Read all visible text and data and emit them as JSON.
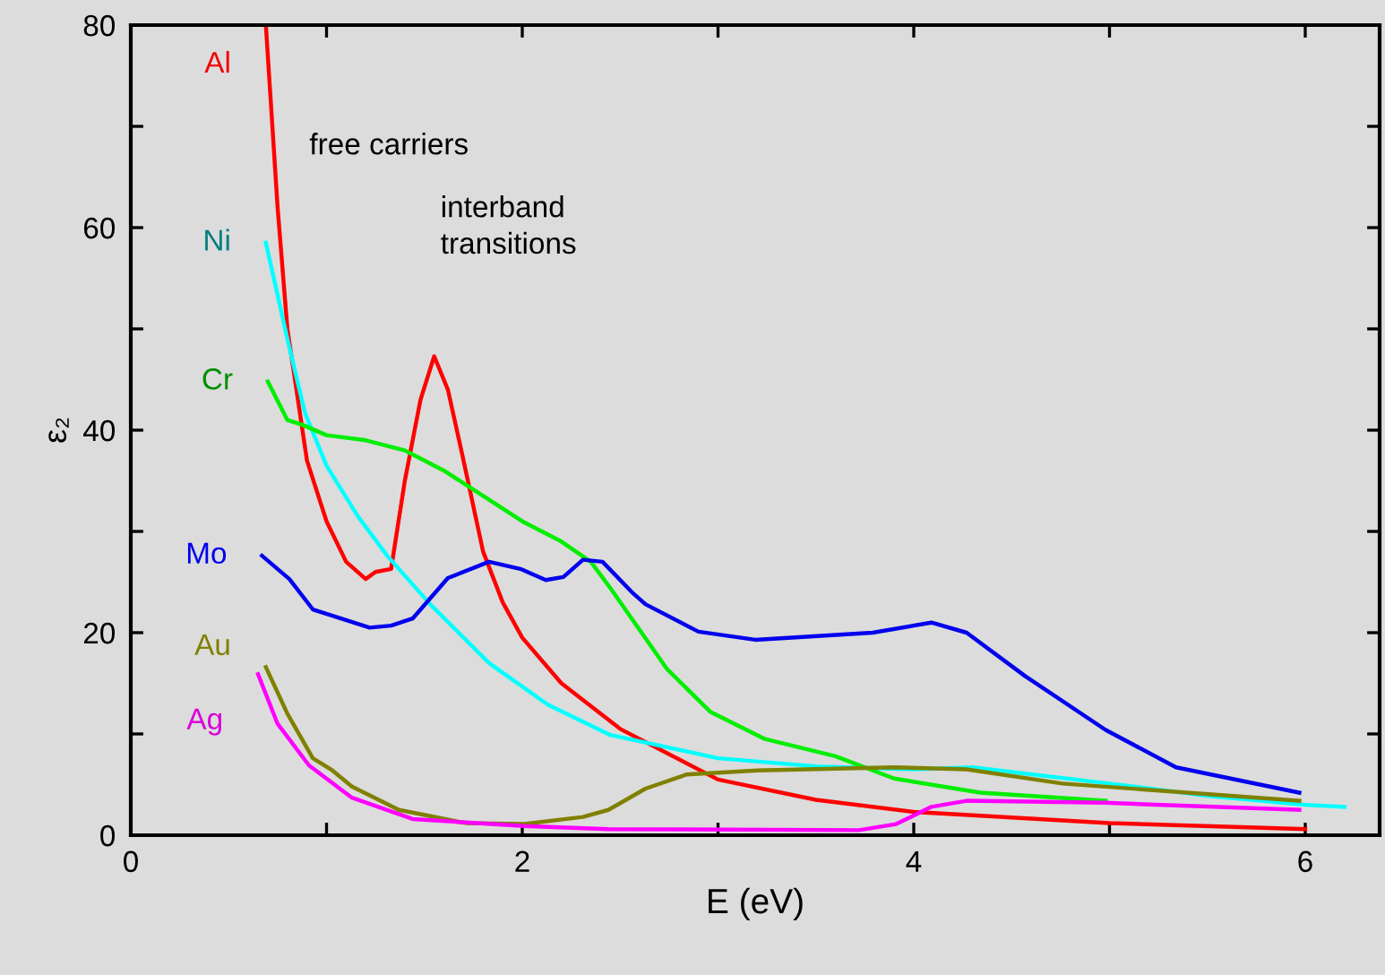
{
  "chart_data": {
    "type": "line",
    "xlabel": "E (eV)",
    "ylabel": "ε₂",
    "xlim": [
      0,
      6.38
    ],
    "ylim": [
      0,
      80
    ],
    "xticks": [
      0,
      {
        "value": 1,
        "label": null
      },
      2,
      {
        "value": 3,
        "label": null
      },
      4,
      {
        "value": 5,
        "label": null
      },
      6
    ],
    "yticks": [
      0,
      {
        "value": 10,
        "label": null
      },
      20,
      {
        "value": 30,
        "label": null
      },
      40,
      {
        "value": 50,
        "label": null
      },
      60,
      {
        "value": 70,
        "label": null
      },
      80
    ],
    "grid": false,
    "legend": false,
    "marker": "none",
    "line_style": "solid",
    "annotations": [
      "free carriers",
      "interband\ntransitions"
    ],
    "series": [
      {
        "name": "Al",
        "color": "#ff0000",
        "x": [
          0.69,
          0.75,
          0.8,
          0.9,
          1.0,
          1.1,
          1.2,
          1.25,
          1.33,
          1.4,
          1.48,
          1.55,
          1.62,
          1.7,
          1.8,
          1.9,
          2.0,
          2.2,
          2.5,
          3.0,
          3.5,
          4.0,
          5.0,
          6.0
        ],
        "values": [
          80,
          62,
          50,
          37,
          31,
          27,
          25.3,
          26,
          26.3,
          35,
          43,
          47.3,
          44,
          37,
          28,
          23,
          19.5,
          15,
          10.5,
          5.5,
          3.5,
          2.3,
          1.2,
          0.6
        ]
      },
      {
        "name": "Ni",
        "color": "#00ffff",
        "x": [
          0.69,
          0.8,
          0.89,
          1.0,
          1.16,
          1.31,
          1.53,
          1.83,
          2.13,
          2.45,
          3.0,
          3.5,
          4.0,
          4.3,
          5.0,
          5.5,
          6.0,
          6.2
        ],
        "values": [
          58.5,
          49,
          41.7,
          36.5,
          31.5,
          27.6,
          22.8,
          17,
          12.9,
          9.9,
          7.6,
          6.8,
          6.5,
          6.7,
          5.1,
          3.9,
          3.0,
          2.8
        ]
      },
      {
        "name": "Cr",
        "color": "#00ee00",
        "x": [
          0.7,
          0.8,
          0.88,
          1.0,
          1.2,
          1.4,
          1.6,
          2.0,
          2.2,
          2.35,
          2.45,
          2.74,
          2.96,
          3.24,
          3.6,
          3.9,
          4.34,
          4.98
        ],
        "values": [
          44.8,
          41,
          40.5,
          39.5,
          39,
          38,
          36,
          31,
          29,
          27,
          24.4,
          16.4,
          12.2,
          9.5,
          7.8,
          5.6,
          4.2,
          3.4
        ]
      },
      {
        "name": "Mo",
        "color": "#0000ee",
        "x": [
          0.67,
          0.81,
          0.93,
          1.22,
          1.33,
          1.44,
          1.62,
          1.83,
          1.99,
          2.12,
          2.21,
          2.31,
          2.41,
          2.56,
          2.63,
          2.9,
          3.19,
          3.79,
          4.09,
          4.27,
          4.57,
          4.98,
          5.34,
          5.97
        ],
        "values": [
          27.6,
          25.3,
          22.3,
          20.5,
          20.7,
          21.4,
          25.4,
          27,
          26.3,
          25.2,
          25.5,
          27.2,
          27,
          24,
          22.8,
          20.1,
          19.3,
          20,
          21,
          20,
          15.7,
          10.4,
          6.7,
          4.2
        ]
      },
      {
        "name": "Au",
        "color": "#808000",
        "x": [
          0.69,
          0.8,
          0.93,
          1.03,
          1.13,
          1.37,
          1.71,
          2.01,
          2.31,
          2.44,
          2.63,
          2.84,
          3.2,
          3.9,
          4.27,
          4.76,
          5.97
        ],
        "values": [
          16.6,
          12,
          7.6,
          6.4,
          4.8,
          2.5,
          1.2,
          1.1,
          1.8,
          2.5,
          4.6,
          6,
          6.4,
          6.7,
          6.5,
          5.1,
          3.4
        ]
      },
      {
        "name": "Ag",
        "color": "#ff00ff",
        "x": [
          0.65,
          0.75,
          0.91,
          1.13,
          1.44,
          2.01,
          2.44,
          3.72,
          3.91,
          4.09,
          4.27,
          4.98,
          5.97
        ],
        "values": [
          15.9,
          11,
          6.9,
          3.7,
          1.6,
          0.9,
          0.6,
          0.5,
          1.1,
          2.8,
          3.4,
          3.2,
          2.5
        ]
      }
    ]
  }
}
